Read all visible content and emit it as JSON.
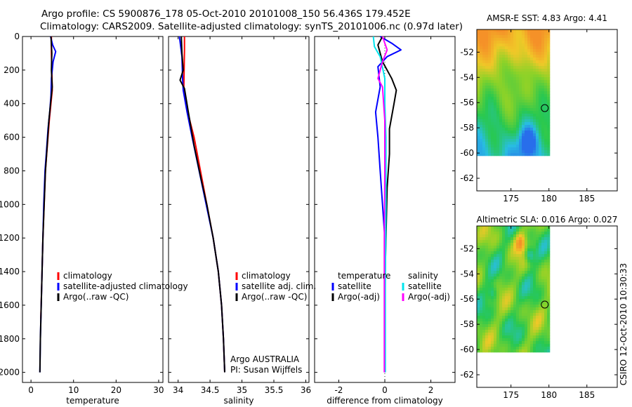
{
  "header": {
    "line1": "Argo profile: CS 5900876_178 05-Oct-2010 20101008_150 56.436S 179.452E",
    "line2": "Climatology: CARS2009. Satellite-adjusted climatology: synTS_20101006.nc (0.97d later)"
  },
  "side_stamp": "CSIRO 12-Oct-2010 10:30:33",
  "credit": {
    "line1": "Argo AUSTRALIA",
    "line2": "PI: Susan Wijffels"
  },
  "colors": {
    "climatology": "#ff0000",
    "satellite": "#0000ff",
    "argo": "#000000",
    "sat_salinity": "#00e5ee",
    "argo_salinity": "#ff00ff"
  },
  "chart_data": [
    {
      "type": "line",
      "xlabel": "temperature",
      "ylabel": "",
      "xlim": [
        -2,
        31
      ],
      "ylim": [
        2060,
        0
      ],
      "xticks": [
        0,
        10,
        20,
        30
      ],
      "yticks": [
        0,
        200,
        400,
        600,
        800,
        1000,
        1200,
        1400,
        1600,
        1800,
        2000
      ],
      "legend": [
        "climatology",
        "satellite-adjusted climatology",
        "Argo(..raw -QC)"
      ],
      "series": [
        {
          "name": "climatology",
          "color": "#ff0000",
          "points": [
            [
              4.8,
              0
            ],
            [
              4.8,
              100
            ],
            [
              4.9,
              200
            ],
            [
              5.0,
              320
            ],
            [
              4.3,
              500
            ],
            [
              3.7,
              700
            ],
            [
              3.4,
              800
            ],
            [
              3.1,
              1000
            ],
            [
              2.8,
              1200
            ],
            [
              2.6,
              1400
            ],
            [
              2.3,
              1680
            ]
          ]
        },
        {
          "name": "satellite-adjusted climatology",
          "color": "#0000ff",
          "points": [
            [
              4.6,
              0
            ],
            [
              5.1,
              50
            ],
            [
              5.8,
              90
            ],
            [
              5.2,
              150
            ],
            [
              4.8,
              250
            ],
            [
              4.7,
              350
            ],
            [
              4.4,
              450
            ],
            [
              4.0,
              550
            ],
            [
              3.6,
              700
            ],
            [
              3.3,
              800
            ],
            [
              3.0,
              1000
            ],
            [
              2.8,
              1200
            ],
            [
              2.6,
              1400
            ],
            [
              2.4,
              1600
            ],
            [
              2.2,
              1800
            ],
            [
              2.1,
              2000
            ]
          ]
        },
        {
          "name": "Argo(..raw -QC)",
          "color": "#000000",
          "points": [
            [
              4.7,
              0
            ],
            [
              4.9,
              100
            ],
            [
              4.8,
              200
            ],
            [
              5.0,
              300
            ],
            [
              4.8,
              350
            ],
            [
              4.6,
              400
            ],
            [
              4.2,
              500
            ],
            [
              3.8,
              650
            ],
            [
              3.4,
              800
            ],
            [
              3.1,
              1000
            ],
            [
              2.8,
              1200
            ],
            [
              2.6,
              1400
            ],
            [
              2.4,
              1600
            ],
            [
              2.2,
              1800
            ],
            [
              2.1,
              2000
            ]
          ]
        }
      ]
    },
    {
      "type": "line",
      "xlabel": "salinity",
      "ylabel": "",
      "xlim": [
        33.85,
        36.05
      ],
      "ylim": [
        2060,
        0
      ],
      "xticks": [
        34,
        34.5,
        35,
        35.5,
        36
      ],
      "yticks": [
        0,
        200,
        400,
        600,
        800,
        1000,
        1200,
        1400,
        1600,
        1800,
        2000
      ],
      "legend": [
        "climatology",
        "satellite adj. clim.",
        "Argo(..raw -QC)"
      ],
      "series": [
        {
          "name": "climatology",
          "color": "#ff0000",
          "points": [
            [
              34.1,
              0
            ],
            [
              34.1,
              80
            ],
            [
              34.09,
              300
            ],
            [
              34.15,
              450
            ],
            [
              34.25,
              600
            ],
            [
              34.35,
              800
            ],
            [
              34.45,
              1000
            ],
            [
              34.55,
              1200
            ],
            [
              34.63,
              1400
            ],
            [
              34.68,
              1600
            ],
            [
              34.71,
              1800
            ],
            [
              34.73,
              2000
            ]
          ]
        },
        {
          "name": "satellite adj. clim.",
          "color": "#0000ff",
          "points": [
            [
              34.02,
              0
            ],
            [
              34.04,
              60
            ],
            [
              34.06,
              120
            ],
            [
              34.07,
              250
            ],
            [
              34.08,
              320
            ],
            [
              34.14,
              450
            ],
            [
              34.22,
              600
            ],
            [
              34.33,
              800
            ],
            [
              34.44,
              1000
            ],
            [
              34.55,
              1200
            ],
            [
              34.63,
              1400
            ],
            [
              34.68,
              1600
            ],
            [
              34.71,
              1800
            ],
            [
              34.73,
              2000
            ]
          ]
        },
        {
          "name": "Argo(..raw -QC)",
          "color": "#000000",
          "points": [
            [
              34.05,
              0
            ],
            [
              34.06,
              100
            ],
            [
              34.08,
              200
            ],
            [
              34.03,
              260
            ],
            [
              34.1,
              310
            ],
            [
              34.16,
              450
            ],
            [
              34.25,
              650
            ],
            [
              34.36,
              850
            ],
            [
              34.45,
              1000
            ],
            [
              34.55,
              1200
            ],
            [
              34.63,
              1400
            ],
            [
              34.68,
              1600
            ],
            [
              34.71,
              1800
            ],
            [
              34.73,
              2000
            ]
          ]
        }
      ]
    },
    {
      "type": "line",
      "xlabel": "difference from climatology",
      "ylabel": "",
      "xlim": [
        -3.05,
        3.05
      ],
      "ylim": [
        2060,
        0
      ],
      "xticks": [
        -2,
        0,
        2
      ],
      "yticks": [
        0,
        200,
        400,
        600,
        800,
        1000,
        1200,
        1400,
        1600,
        1800,
        2000
      ],
      "legend_temperature_title": "temperature",
      "legend_salinity_title": "salinity",
      "legend": [
        "satellite",
        "Argo(-adj)",
        "satellite",
        "Argo(-adj)"
      ],
      "series": [
        {
          "name": "satellite",
          "group": "temperature",
          "color": "#0000ff",
          "points": [
            [
              -0.2,
              0
            ],
            [
              0.3,
              40
            ],
            [
              0.7,
              80
            ],
            [
              0.1,
              120
            ],
            [
              -0.3,
              180
            ],
            [
              -0.2,
              300
            ],
            [
              -0.4,
              450
            ],
            [
              -0.3,
              600
            ],
            [
              -0.2,
              800
            ],
            [
              -0.1,
              1000
            ],
            [
              0.0,
              1200
            ],
            [
              0.0,
              1400
            ],
            [
              0.0,
              2000
            ]
          ]
        },
        {
          "name": "Argo(-adj)",
          "group": "temperature",
          "color": "#000000",
          "points": [
            [
              -0.1,
              0
            ],
            [
              -0.3,
              50
            ],
            [
              -0.1,
              150
            ],
            [
              0.3,
              250
            ],
            [
              0.5,
              320
            ],
            [
              0.4,
              400
            ],
            [
              0.2,
              550
            ],
            [
              0.2,
              700
            ],
            [
              0.1,
              900
            ],
            [
              0.05,
              1200
            ],
            [
              0.0,
              1500
            ]
          ]
        },
        {
          "name": "satellite",
          "group": "salinity",
          "color": "#00e5ee",
          "points": [
            [
              -0.5,
              0
            ],
            [
              -0.45,
              60
            ],
            [
              -0.2,
              120
            ],
            [
              0.0,
              250
            ],
            [
              0.0,
              400
            ],
            [
              0.05,
              600
            ],
            [
              0.05,
              800
            ],
            [
              0.05,
              1000
            ],
            [
              0.02,
              1500
            ],
            [
              0.02,
              2000
            ]
          ]
        },
        {
          "name": "Argo(-adj)",
          "group": "salinity",
          "color": "#ff00ff",
          "points": [
            [
              -0.1,
              0
            ],
            [
              0.1,
              80
            ],
            [
              -0.1,
              150
            ],
            [
              -0.3,
              250
            ],
            [
              -0.1,
              300
            ],
            [
              0.0,
              500
            ],
            [
              0.0,
              800
            ],
            [
              -0.02,
              1200
            ],
            [
              -0.02,
              1600
            ],
            [
              -0.02,
              2000
            ]
          ]
        }
      ]
    }
  ],
  "maps": [
    {
      "title": "AMSR-E SST: 4.83  Argo: 4.41",
      "xticks": [
        175,
        180,
        185
      ],
      "yticks": [
        -52,
        -54,
        -56,
        -58,
        -60,
        -62
      ],
      "xlim": [
        170.5,
        189
      ],
      "ylim": [
        -63,
        -50.2
      ],
      "grid_extent_lon": [
        170.5,
        180
      ],
      "grid_extent_lat": [
        -60,
        -50.2
      ],
      "marker": {
        "lon": 179.452,
        "lat": -56.436
      }
    },
    {
      "title": "Altimetric SLA: 0.016  Argo: 0.027",
      "xticks": [
        175,
        180,
        185
      ],
      "yticks": [
        -52,
        -54,
        -56,
        -58,
        -60,
        -62
      ],
      "xlim": [
        170.5,
        189
      ],
      "ylim": [
        -63,
        -50.2
      ],
      "grid_extent_lon": [
        170.5,
        180
      ],
      "grid_extent_lat": [
        -60,
        -50.2
      ],
      "marker": {
        "lon": 179.452,
        "lat": -56.436
      }
    }
  ]
}
